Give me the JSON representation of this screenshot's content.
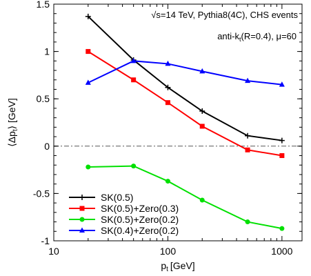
{
  "chart_data": {
    "type": "line",
    "xlabel_main": "p",
    "xlabel_sub": "t",
    "xlabel_unit": "[GeV]",
    "ylabel_open": "⟨Δp",
    "ylabel_sub": "t",
    "ylabel_close": "⟩ [GeV]",
    "x_scale": "log",
    "xlim": [
      10,
      1500
    ],
    "ylim": [
      -1,
      1.5
    ],
    "x_ticks": [
      10,
      100,
      1000
    ],
    "x_tick_labels": [
      "10",
      "100",
      "1000"
    ],
    "y_ticks": [
      -1,
      -0.5,
      0,
      0.5,
      1,
      1.5
    ],
    "y_tick_labels": [
      "-1",
      "-0.5",
      "0",
      "0.5",
      "1",
      "1.5"
    ],
    "zero_line": true,
    "grid": false,
    "legend_position": "bottom-left",
    "annotation1": "√s=14 TeV, Pythia8(4C), CHS events",
    "annotation2_main": "anti-k",
    "annotation2_sub": "t",
    "annotation2_rest": "(R=0.4), μ=60",
    "series": [
      {
        "name": "SK(0.5)",
        "color": "#000000",
        "marker": "plus",
        "x": [
          20,
          50,
          100,
          200,
          500,
          1000
        ],
        "y": [
          1.37,
          0.91,
          0.62,
          0.37,
          0.11,
          0.06
        ]
      },
      {
        "name": "SK(0.5)+Zero(0.3)",
        "color": "#ff0000",
        "marker": "square",
        "x": [
          20,
          50,
          100,
          200,
          500,
          1000
        ],
        "y": [
          1.0,
          0.7,
          0.46,
          0.21,
          -0.04,
          -0.1
        ]
      },
      {
        "name": "SK(0.5)+Zero(0.2)",
        "color": "#00e000",
        "marker": "circle",
        "x": [
          20,
          50,
          100,
          200,
          500,
          1000
        ],
        "y": [
          -0.22,
          -0.21,
          -0.37,
          -0.57,
          -0.8,
          -0.87
        ]
      },
      {
        "name": "SK(0.4)+Zero(0.2)",
        "color": "#0000ff",
        "marker": "triangle",
        "x": [
          20,
          50,
          100,
          200,
          500,
          1000
        ],
        "y": [
          0.67,
          0.9,
          0.87,
          0.79,
          0.69,
          0.65
        ]
      }
    ]
  }
}
